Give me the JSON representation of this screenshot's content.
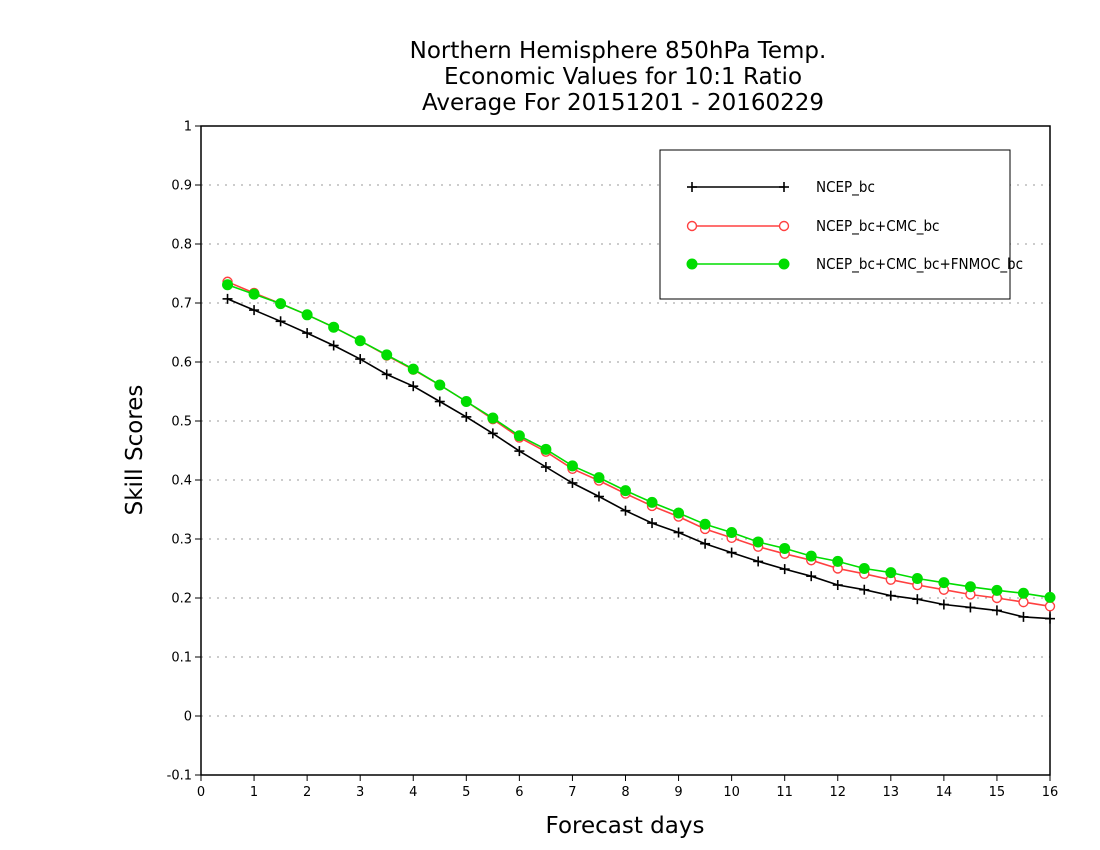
{
  "chart_data": {
    "type": "line",
    "title": [
      "Northern Hemisphere 850hPa Temp.",
      "Economic Values for 10:1 Ratio",
      "Average For 20151201 - 20160229"
    ],
    "xlabel": "Forecast days",
    "ylabel": "Skill Scores",
    "xlim": [
      0,
      16
    ],
    "ylim": [
      -0.1,
      1
    ],
    "xticks": [
      "0",
      "1",
      "2",
      "3",
      "4",
      "5",
      "6",
      "7",
      "8",
      "9",
      "10",
      "11",
      "12",
      "13",
      "14",
      "15",
      "16"
    ],
    "yticks": [
      "-0.1",
      "0",
      "0.1",
      "0.2",
      "0.3",
      "0.4",
      "0.5",
      "0.6",
      "0.7",
      "0.8",
      "0.9",
      "1"
    ],
    "grid": "horizontal-dotted",
    "legend_position": "top-right",
    "x": [
      0.5,
      1,
      1.5,
      2,
      2.5,
      3,
      3.5,
      4,
      4.5,
      5,
      5.5,
      6,
      6.5,
      7,
      7.5,
      8,
      8.5,
      9,
      9.5,
      10,
      10.5,
      11,
      11.5,
      12,
      12.5,
      13,
      13.5,
      14,
      14.5,
      15,
      15.5,
      16
    ],
    "series": [
      {
        "name": "NCEP_bc",
        "color": "#000000",
        "marker": "plus",
        "values": [
          0.707,
          0.688,
          0.669,
          0.649,
          0.628,
          0.605,
          0.579,
          0.559,
          0.533,
          0.507,
          0.479,
          0.449,
          0.422,
          0.395,
          0.372,
          0.348,
          0.327,
          0.311,
          0.292,
          0.277,
          0.262,
          0.249,
          0.237,
          0.222,
          0.214,
          0.204,
          0.198,
          0.189,
          0.184,
          0.179,
          0.168,
          0.165
        ]
      },
      {
        "name": "NCEP_bc+CMC_bc",
        "color": "#ff4040",
        "marker": "open-circle",
        "values": [
          0.736,
          0.717,
          0.699,
          0.68,
          0.659,
          0.636,
          0.611,
          0.587,
          0.561,
          0.533,
          0.503,
          0.472,
          0.448,
          0.419,
          0.399,
          0.377,
          0.356,
          0.338,
          0.317,
          0.302,
          0.287,
          0.275,
          0.264,
          0.25,
          0.241,
          0.231,
          0.222,
          0.214,
          0.206,
          0.2,
          0.193,
          0.186
        ]
      },
      {
        "name": "NCEP_bc+CMC_bc+FNMOC_bc",
        "color": "#00dd00",
        "marker": "filled-circle",
        "values": [
          0.731,
          0.715,
          0.699,
          0.68,
          0.659,
          0.636,
          0.612,
          0.588,
          0.561,
          0.533,
          0.505,
          0.475,
          0.452,
          0.424,
          0.404,
          0.382,
          0.362,
          0.344,
          0.325,
          0.311,
          0.295,
          0.284,
          0.271,
          0.262,
          0.25,
          0.243,
          0.233,
          0.226,
          0.219,
          0.213,
          0.208,
          0.201
        ]
      }
    ]
  }
}
